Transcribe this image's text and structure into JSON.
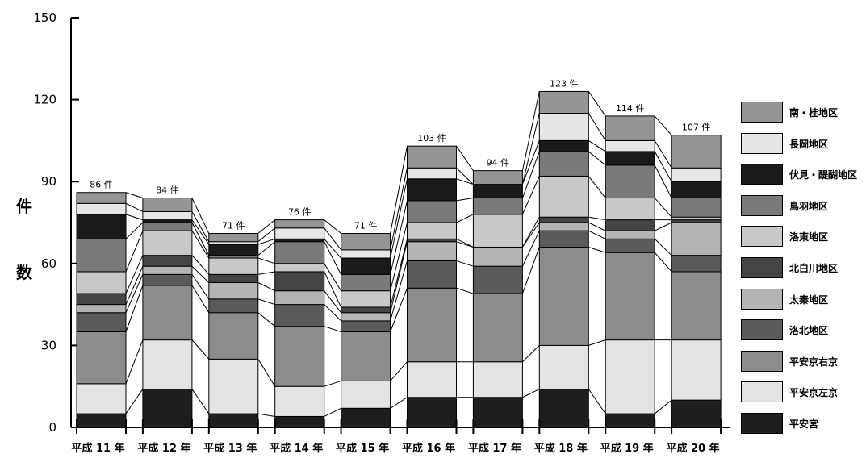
{
  "chart_data": {
    "type": "bar",
    "stacked": true,
    "title": "",
    "xlabel": "",
    "ylabel": "件数",
    "ylim": [
      0,
      150
    ],
    "yticks": [
      "0",
      "30",
      "60",
      "90",
      "120",
      "150"
    ],
    "categories": [
      "平成 11 年",
      "平成 12 年",
      "平成 13 年",
      "平成 14 年",
      "平成 15 年",
      "平成 16 年",
      "平成 17 年",
      "平成 18 年",
      "平成 19 年",
      "平成 20 年"
    ],
    "totals": [
      "86 件",
      "84 件",
      "71 件",
      "76 件",
      "71 件",
      "103 件",
      "94 件",
      "123 件",
      "114 件",
      "107 件"
    ],
    "legend_position": "right",
    "series": [
      {
        "name": "平安宮",
        "color": "#1e1e1e",
        "values": [
          5,
          14,
          5,
          4,
          7,
          11,
          11,
          14,
          5,
          10
        ]
      },
      {
        "name": "平安京左京",
        "color": "#e3e3e3",
        "values": [
          11,
          18,
          20,
          11,
          10,
          13,
          13,
          16,
          27,
          22
        ]
      },
      {
        "name": "平安京右京",
        "color": "#8c8c8c",
        "values": [
          19,
          20,
          17,
          22,
          18,
          27,
          25,
          36,
          32,
          25
        ]
      },
      {
        "name": "洛北地区",
        "color": "#5a5a5a",
        "values": [
          7,
          4,
          5,
          8,
          4,
          10,
          10,
          6,
          5,
          6
        ]
      },
      {
        "name": "太秦地区",
        "color": "#b4b4b4",
        "values": [
          3,
          3,
          6,
          5,
          3,
          7,
          7,
          3,
          3,
          12
        ]
      },
      {
        "name": "北白川地区",
        "color": "#444444",
        "values": [
          4,
          4,
          3,
          7,
          2,
          1,
          0,
          2,
          4,
          1
        ]
      },
      {
        "name": "洛東地区",
        "color": "#c8c8c8",
        "values": [
          8,
          9,
          6,
          3,
          6,
          6,
          12,
          15,
          8,
          1
        ]
      },
      {
        "name": "鳥羽地区",
        "color": "#7a7a7a",
        "values": [
          12,
          3,
          1,
          8,
          6,
          8,
          6,
          9,
          12,
          7
        ]
      },
      {
        "name": "伏見・醍醐地区",
        "color": "#1a1a1a",
        "values": [
          9,
          1,
          4,
          1,
          6,
          8,
          5,
          4,
          5,
          6
        ]
      },
      {
        "name": "長岡地区",
        "color": "#e6e6e6",
        "values": [
          4,
          3,
          1,
          4,
          3,
          4,
          0,
          10,
          4,
          5
        ]
      },
      {
        "name": "南・桂地区",
        "color": "#959595",
        "values": [
          4,
          5,
          3,
          3,
          6,
          8,
          5,
          8,
          9,
          12
        ]
      }
    ]
  }
}
